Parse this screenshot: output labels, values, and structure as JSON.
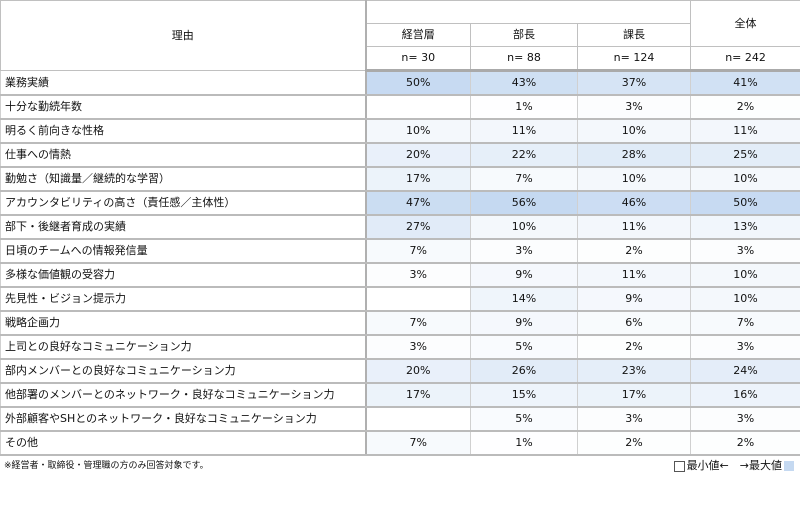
{
  "header": {
    "reason": "理由",
    "groups": [
      "経営層",
      "部長",
      "課長"
    ],
    "total": "全体",
    "n": [
      "n= 30",
      "n= 88",
      "n= 124",
      "n= 242"
    ]
  },
  "rows": [
    {
      "label": "業務実績",
      "values": [
        "50%",
        "43%",
        "37%",
        "41%"
      ]
    },
    {
      "label": "十分な勤続年数",
      "values": [
        "",
        "1%",
        "3%",
        "2%"
      ]
    },
    {
      "label": "明るく前向きな性格",
      "values": [
        "10%",
        "11%",
        "10%",
        "11%"
      ]
    },
    {
      "label": "仕事への情熱",
      "values": [
        "20%",
        "22%",
        "28%",
        "25%"
      ]
    },
    {
      "label": "勤勉さ（知識量／継続的な学習）",
      "values": [
        "17%",
        "7%",
        "10%",
        "10%"
      ]
    },
    {
      "label": "アカウンタビリティの高さ（責任感／主体性）",
      "values": [
        "47%",
        "56%",
        "46%",
        "50%"
      ]
    },
    {
      "label": "部下・後継者育成の実績",
      "values": [
        "27%",
        "10%",
        "11%",
        "13%"
      ]
    },
    {
      "label": "日頃のチームへの情報発信量",
      "values": [
        "7%",
        "3%",
        "2%",
        "3%"
      ]
    },
    {
      "label": "多様な価値観の受容力",
      "values": [
        "3%",
        "9%",
        "11%",
        "10%"
      ]
    },
    {
      "label": "先見性・ビジョン提示力",
      "values": [
        "",
        "14%",
        "9%",
        "10%"
      ]
    },
    {
      "label": "戦略企画力",
      "values": [
        "7%",
        "9%",
        "6%",
        "7%"
      ]
    },
    {
      "label": "上司との良好なコミュニケーション力",
      "values": [
        "3%",
        "5%",
        "2%",
        "3%"
      ]
    },
    {
      "label": "部内メンバーとの良好なコミュニケーション力",
      "values": [
        "20%",
        "26%",
        "23%",
        "24%"
      ]
    },
    {
      "label": "他部署のメンバーとのネットワーク・良好なコミュニケーション力",
      "values": [
        "17%",
        "15%",
        "17%",
        "16%"
      ]
    },
    {
      "label": "外部顧客やSHとのネットワーク・良好なコミュニケーション力",
      "values": [
        "",
        "5%",
        "3%",
        "3%"
      ]
    },
    {
      "label": "その他",
      "values": [
        "7%",
        "1%",
        "2%",
        "2%"
      ]
    }
  ],
  "footnote": "※経営者・取締役・管理職の方のみ回答対象です。",
  "legend": {
    "min": "最小値←",
    "max": "→最大値"
  },
  "colors": {
    "max": "#c5d9f1"
  }
}
